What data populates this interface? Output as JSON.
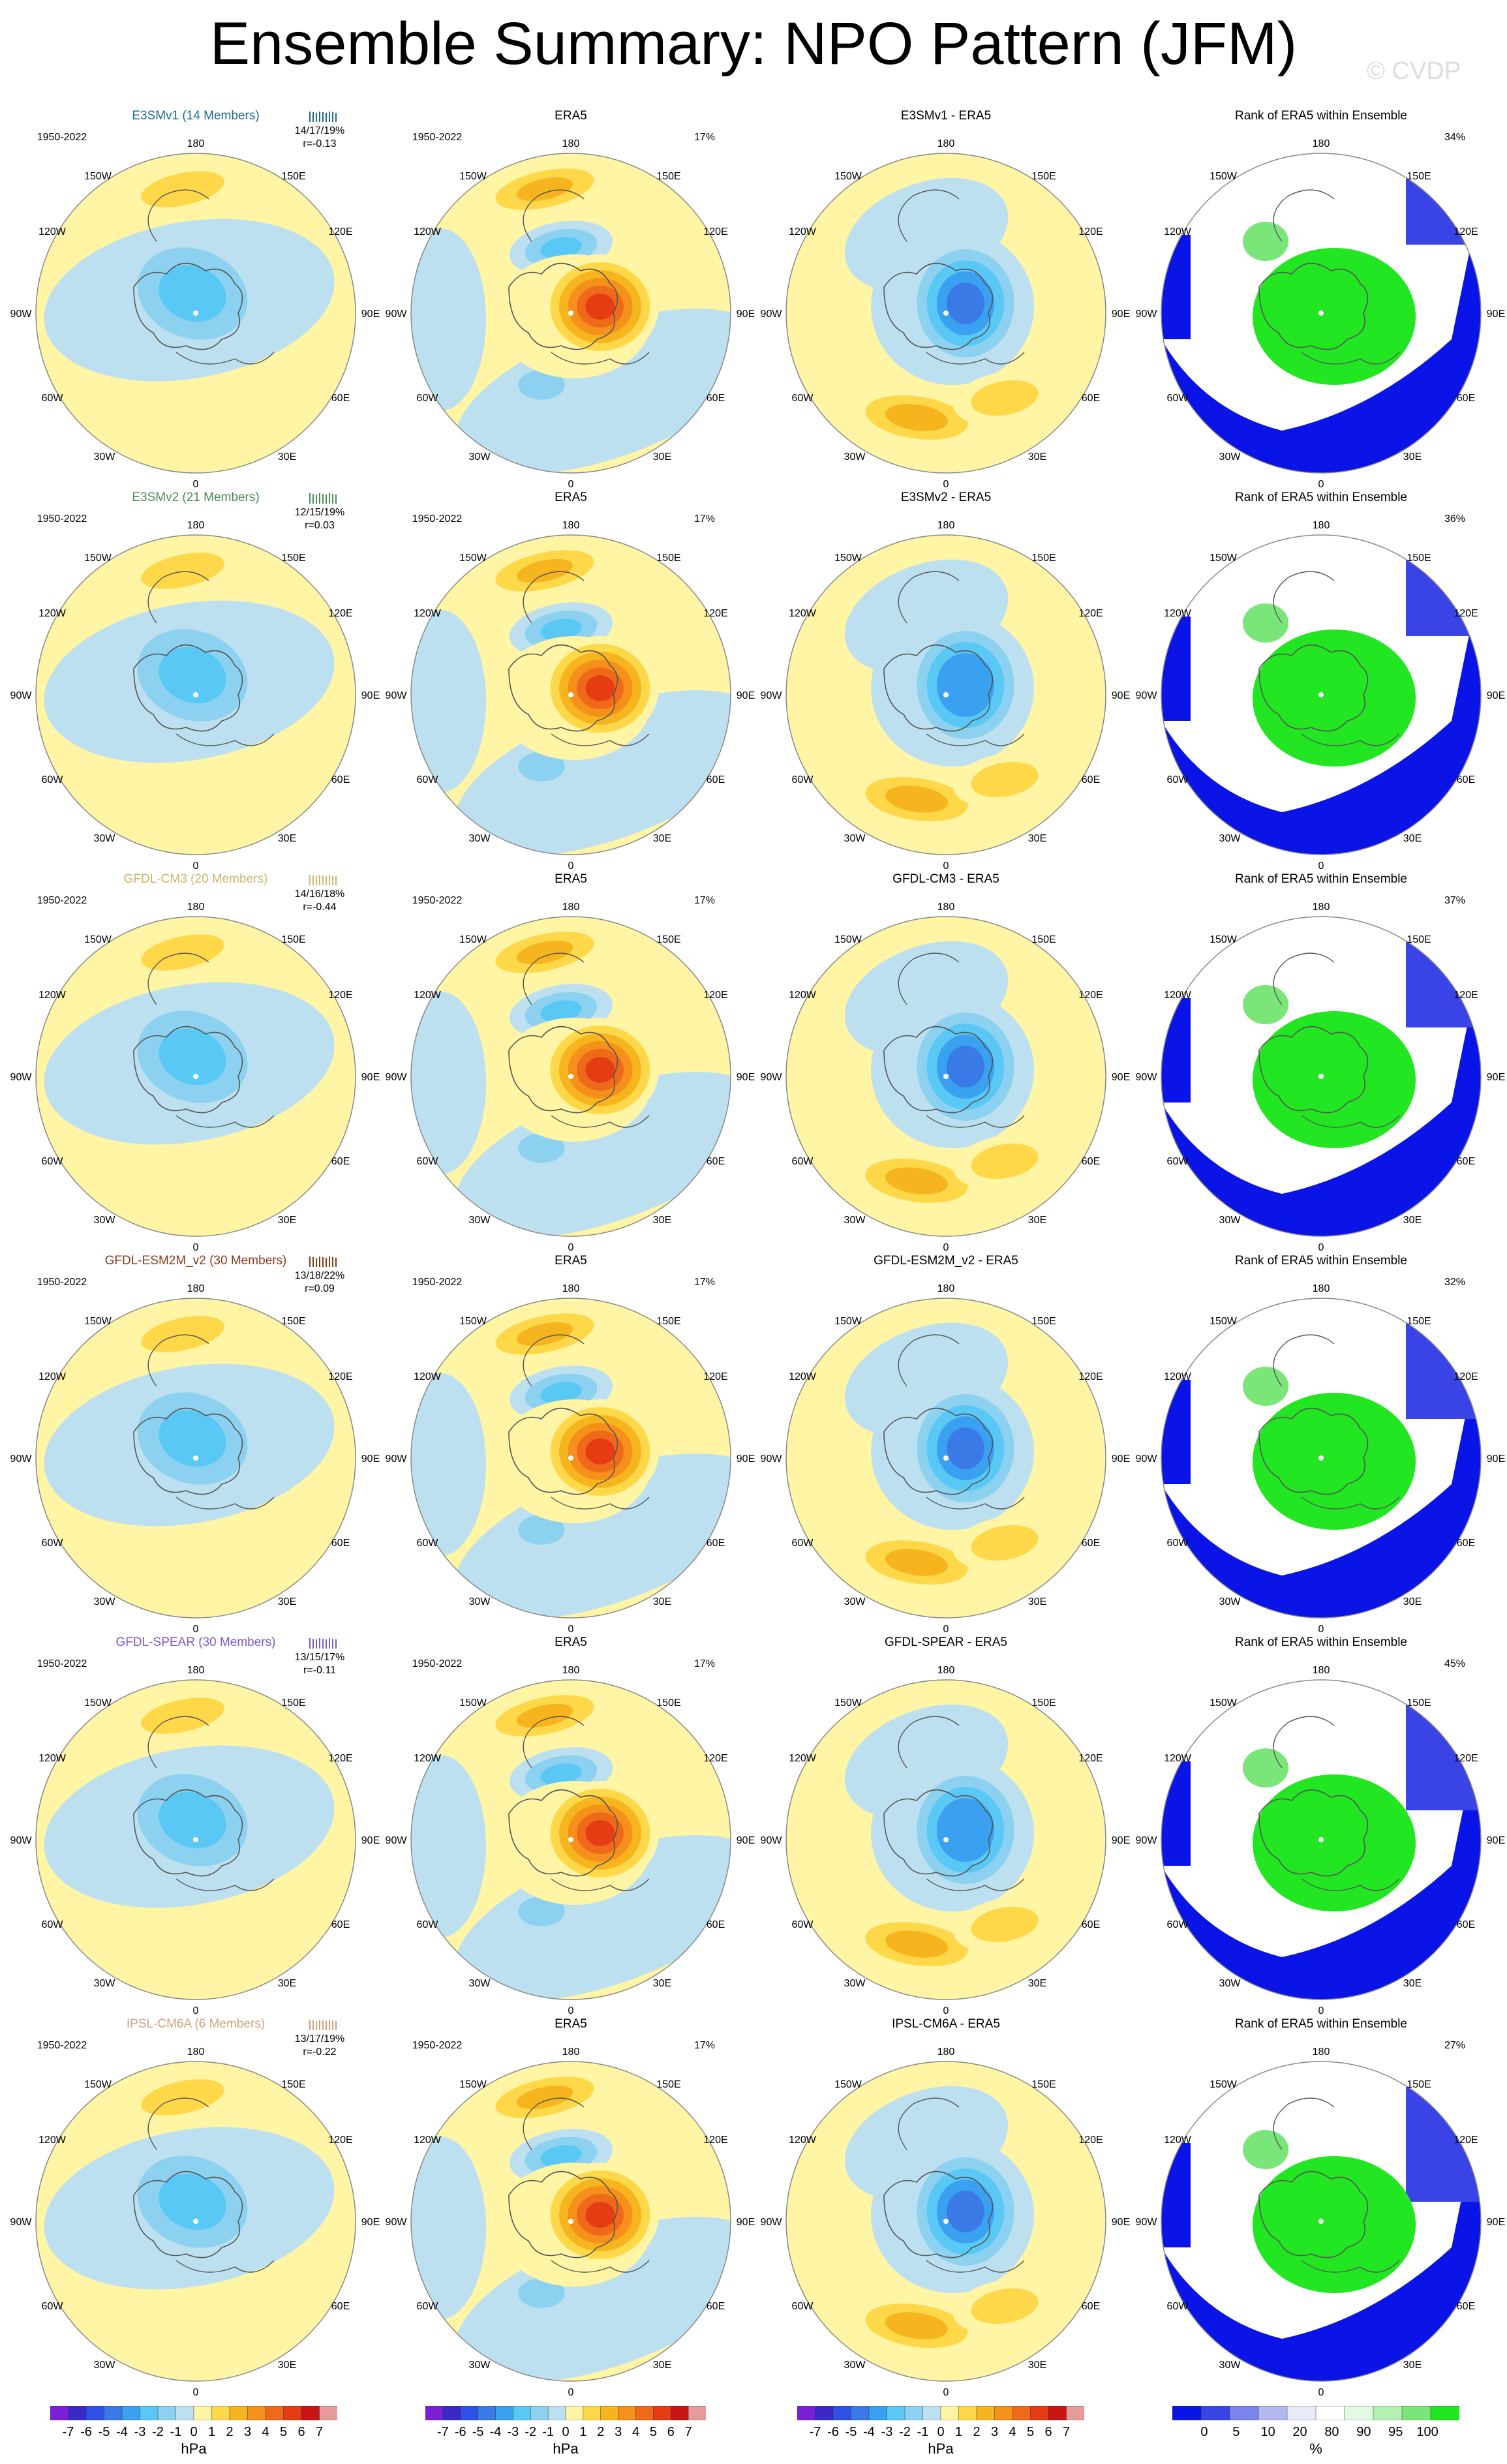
{
  "title": "Ensemble Summary: NPO Pattern (JFM)",
  "credit": "© CVDP",
  "lon_labels": {
    "top": "180",
    "ul": "150W",
    "ur": "150E",
    "ml": "120W",
    "mr": "120E",
    "l": "90W",
    "r": "90E",
    "ll": "60W",
    "lr": "60E",
    "bl": "30W",
    "br": "30E",
    "bottom": "0"
  },
  "rows": [
    {
      "model": "E3SMv1 (14 Members)",
      "model_color": "#1a6b8a",
      "period": "1950-2022",
      "stats": "14/17/19%",
      "r": "r=-0.13",
      "obs_title": "ERA5",
      "obs_pct": "17%",
      "diff_title": "E3SMv1 - ERA5",
      "rank_title": "Rank of ERA5 within Ensemble",
      "rank_pct": "34%",
      "amp": 1.0,
      "shift": 0
    },
    {
      "model": "E3SMv2 (21 Members)",
      "model_color": "#4a8a5a",
      "period": "1950-2022",
      "stats": "12/15/19%",
      "r": "r=0.03",
      "obs_title": "ERA5",
      "obs_pct": "17%",
      "diff_title": "E3SMv2 - ERA5",
      "rank_title": "Rank of ERA5 within Ensemble",
      "rank_pct": "36%",
      "amp": 0.8,
      "shift": 1
    },
    {
      "model": "GFDL-CM3 (20 Members)",
      "model_color": "#c8b86a",
      "period": "1950-2022",
      "stats": "14/16/18%",
      "r": "r=-0.44",
      "obs_title": "ERA5",
      "obs_pct": "17%",
      "diff_title": "GFDL-CM3 - ERA5",
      "rank_title": "Rank of ERA5 within Ensemble",
      "rank_pct": "37%",
      "amp": 1.1,
      "shift": 2
    },
    {
      "model": "GFDL-ESM2M_v2 (30 Members)",
      "model_color": "#8b3a1a",
      "period": "1950-2022",
      "stats": "13/18/22%",
      "r": "r=0.09",
      "obs_title": "ERA5",
      "obs_pct": "17%",
      "diff_title": "GFDL-ESM2M_v2 - ERA5",
      "rank_title": "Rank of ERA5 within Ensemble",
      "rank_pct": "32%",
      "amp": 1.05,
      "shift": 3
    },
    {
      "model": "GFDL-SPEAR (30 Members)",
      "model_color": "#7a5ac8",
      "period": "1950-2022",
      "stats": "13/15/17%",
      "r": "r=-0.11",
      "obs_title": "ERA5",
      "obs_pct": "17%",
      "diff_title": "GFDL-SPEAR - ERA5",
      "rank_title": "Rank of ERA5 within Ensemble",
      "rank_pct": "45%",
      "amp": 0.85,
      "shift": 4
    },
    {
      "model": "IPSL-CM6A (6 Members)",
      "model_color": "#d4a07a",
      "period": "1950-2022",
      "stats": "13/17/19%",
      "r": "r=-0.22",
      "obs_title": "ERA5",
      "obs_pct": "17%",
      "diff_title": "IPSL-CM6A - ERA5",
      "rank_title": "Rank of ERA5 within Ensemble",
      "rank_pct": "27%",
      "amp": 0.9,
      "shift": 5
    }
  ],
  "colorbar_hpa": {
    "ticks": [
      "-7",
      "-6",
      "-5",
      "-4",
      "-3",
      "-2",
      "-1",
      "0",
      "1",
      "2",
      "3",
      "4",
      "5",
      "6",
      "7"
    ],
    "colors": [
      "#7a1fd6",
      "#3a28c8",
      "#2e50e6",
      "#3a7ae6",
      "#3aa0f0",
      "#5ac8f5",
      "#8cd2f0",
      "#bde0f0",
      "#fff5a5",
      "#ffd84a",
      "#f6b41e",
      "#f5901a",
      "#ee6a1a",
      "#e63c14",
      "#c81414",
      "#e69a9a"
    ],
    "unit": "hPa"
  },
  "colorbar_rank": {
    "ticks": [
      "0",
      "5",
      "10",
      "20",
      "80",
      "90",
      "95",
      "100"
    ],
    "colors": [
      "#0a14e6",
      "#3a44e6",
      "#7a84ec",
      "#b4b8f0",
      "#e8eaf8",
      "#ffffff",
      "#e2fae2",
      "#b4f0b4",
      "#7ae67a",
      "#22e622"
    ],
    "unit": "%"
  }
}
